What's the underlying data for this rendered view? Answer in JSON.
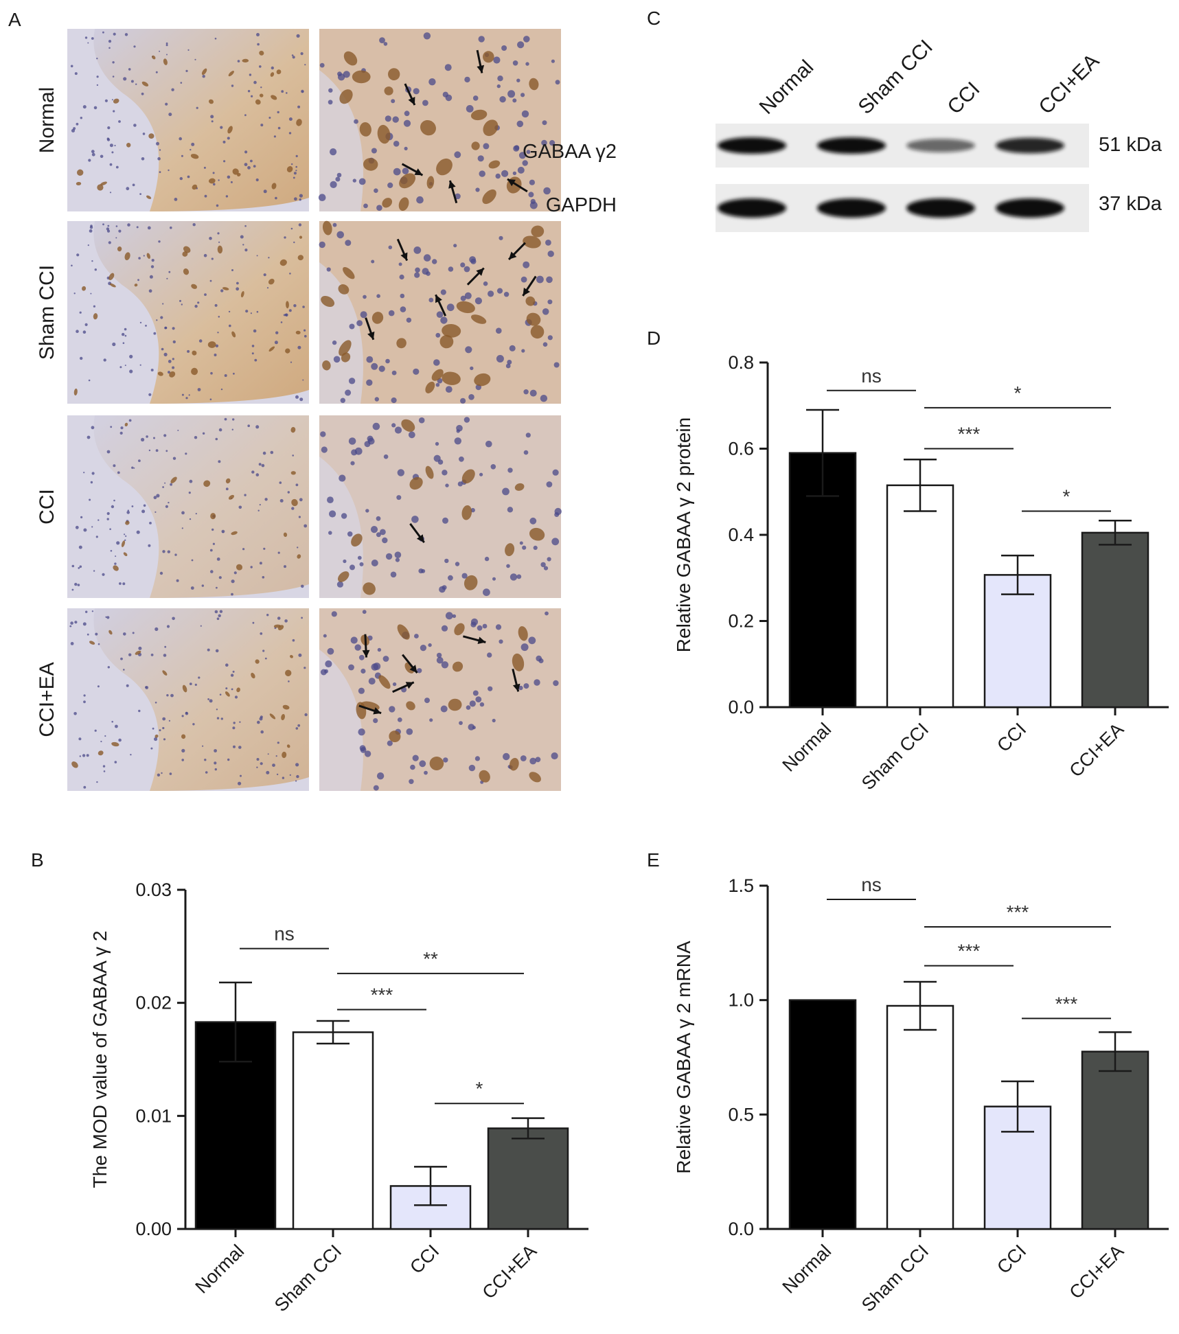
{
  "panel_letters": {
    "A": "A",
    "B": "B",
    "C": "C",
    "D": "D",
    "E": "E"
  },
  "panel_a": {
    "rows": [
      "Normal",
      "Sham CCI",
      "CCI",
      "CCI+EA"
    ],
    "tissue_color_stained": "#d9b48f",
    "tissue_color_background": "#d8d6e4",
    "nucleus_color": "#4b4a8a",
    "cell_color": "#8a5a2b"
  },
  "panel_c": {
    "lanes": [
      "Normal",
      "Sham CCI",
      "CCI",
      "CCI+EA"
    ],
    "blots": [
      {
        "name": "GABAA γ2",
        "size": "51 kDa",
        "intensity": [
          1.0,
          1.0,
          0.45,
          0.85
        ]
      },
      {
        "name": "GAPDH",
        "size": "37 kDa",
        "intensity": [
          1.0,
          1.0,
          1.0,
          1.0
        ]
      }
    ]
  },
  "chart_data": [
    {
      "panel": "B",
      "type": "bar",
      "categories": [
        "Normal",
        "Sham CCI",
        "CCI",
        "CCI+EA"
      ],
      "values": [
        0.0183,
        0.0174,
        0.0038,
        0.0089
      ],
      "errors": [
        0.0035,
        0.001,
        0.0017,
        0.0009
      ],
      "colors": [
        "#000000",
        "#ffffff",
        "#e4e6fb",
        "#4a4d4a"
      ],
      "ylabel": "The MOD value of GABAA γ 2",
      "ylim": [
        0,
        0.03
      ],
      "yticks": [
        0,
        0.01,
        0.02,
        0.03
      ],
      "ytick_labels": [
        "0.00",
        "0.01",
        "0.02",
        "0.03"
      ],
      "significance": [
        {
          "from": 0,
          "to": 1,
          "label": "ns",
          "y": 0.0248
        },
        {
          "from": 1,
          "to": 3,
          "label": "**",
          "y": 0.0226
        },
        {
          "from": 1,
          "to": 2,
          "label": "***",
          "y": 0.0194
        },
        {
          "from": 2,
          "to": 3,
          "label": "*",
          "y": 0.0111
        }
      ]
    },
    {
      "panel": "D",
      "type": "bar",
      "categories": [
        "Normal",
        "Sham CCI",
        "CCI",
        "CCI+EA"
      ],
      "values": [
        0.59,
        0.515,
        0.307,
        0.405
      ],
      "errors": [
        0.1,
        0.06,
        0.045,
        0.028
      ],
      "colors": [
        "#000000",
        "#ffffff",
        "#e4e6fb",
        "#4a4d4a"
      ],
      "ylabel": "Relative GABAA γ 2 protein",
      "ylim": [
        0,
        0.8
      ],
      "yticks": [
        0,
        0.2,
        0.4,
        0.6,
        0.8
      ],
      "ytick_labels": [
        "0.0",
        "0.2",
        "0.4",
        "0.6",
        "0.8"
      ],
      "significance": [
        {
          "from": 0,
          "to": 1,
          "label": "ns",
          "y": 0.735
        },
        {
          "from": 1,
          "to": 3,
          "label": "*",
          "y": 0.695
        },
        {
          "from": 1,
          "to": 2,
          "label": "***",
          "y": 0.6
        },
        {
          "from": 2,
          "to": 3,
          "label": "*",
          "y": 0.455
        }
      ]
    },
    {
      "panel": "E",
      "type": "bar",
      "categories": [
        "Normal",
        "Sham CCI",
        "CCI",
        "CCI+EA"
      ],
      "values": [
        1.0,
        0.975,
        0.535,
        0.775
      ],
      "errors": [
        0.0,
        0.105,
        0.11,
        0.085
      ],
      "colors": [
        "#000000",
        "#ffffff",
        "#e4e6fb",
        "#4a4d4a"
      ],
      "ylabel": "Relative GABAA γ 2 mRNA",
      "ylim": [
        0,
        1.5
      ],
      "yticks": [
        0,
        0.5,
        1.0,
        1.5
      ],
      "ytick_labels": [
        "0.0",
        "0.5",
        "1.0",
        "1.5"
      ],
      "significance": [
        {
          "from": 0,
          "to": 1,
          "label": "ns",
          "y": 1.44
        },
        {
          "from": 1,
          "to": 3,
          "label": "***",
          "y": 1.32
        },
        {
          "from": 1,
          "to": 2,
          "label": "***",
          "y": 1.15
        },
        {
          "from": 2,
          "to": 3,
          "label": "***",
          "y": 0.92
        }
      ]
    }
  ]
}
